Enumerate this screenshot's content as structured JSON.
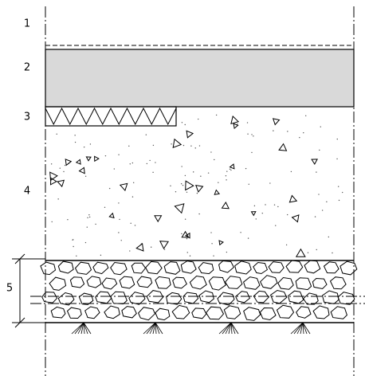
{
  "layers": [
    {
      "label": "1"
    },
    {
      "label": "2"
    },
    {
      "label": "3"
    },
    {
      "label": "4"
    },
    {
      "label": "5"
    }
  ]
}
